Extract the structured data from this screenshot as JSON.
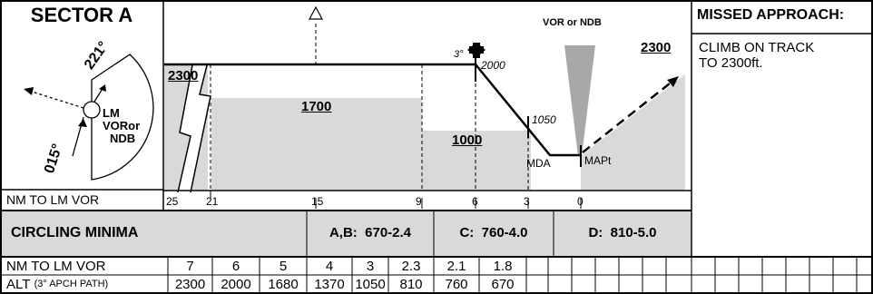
{
  "sector": {
    "title": "SECTOR A",
    "courses": {
      "inbound": "015°",
      "outbound": "221°"
    },
    "facility_labels": [
      "LM",
      "VORor",
      "NDB"
    ]
  },
  "profile": {
    "fix_label": "VOR or NDB",
    "glide_angle": "3°",
    "altitudes": {
      "initial": "2300",
      "sector_mid": "1700",
      "final": "1000",
      "missed": "2300",
      "fix_crossing": "2000",
      "step": "1050"
    },
    "mda_label": "MDA",
    "mapt_label": "MAPt",
    "distance_row_label": "NM TO LM VOR",
    "distance_ticks": [
      "25",
      "21",
      "15",
      "9",
      "6",
      "3",
      "0"
    ]
  },
  "missed_approach": {
    "title": "MISSED APPROACH:",
    "instruction_lines": [
      "CLIMB ON TRACK",
      "TO 2300ft."
    ]
  },
  "circling": {
    "title": "CIRCLING MINIMA",
    "cat_ab": "A,B:  670-2.4",
    "cat_c": "C:  760-4.0",
    "cat_d": "D:  810-5.0"
  },
  "table": {
    "row1_label": "NM TO LM VOR",
    "row2_label_main": "ALT",
    "row2_label_sub": "(3° APCH PATH)",
    "distances": [
      "7",
      "6",
      "5",
      "4",
      "3",
      "2.3",
      "2.1",
      "1.8"
    ],
    "altitudes": [
      "2300",
      "2000",
      "1680",
      "1370",
      "1050",
      "810",
      "760",
      "670"
    ]
  }
}
